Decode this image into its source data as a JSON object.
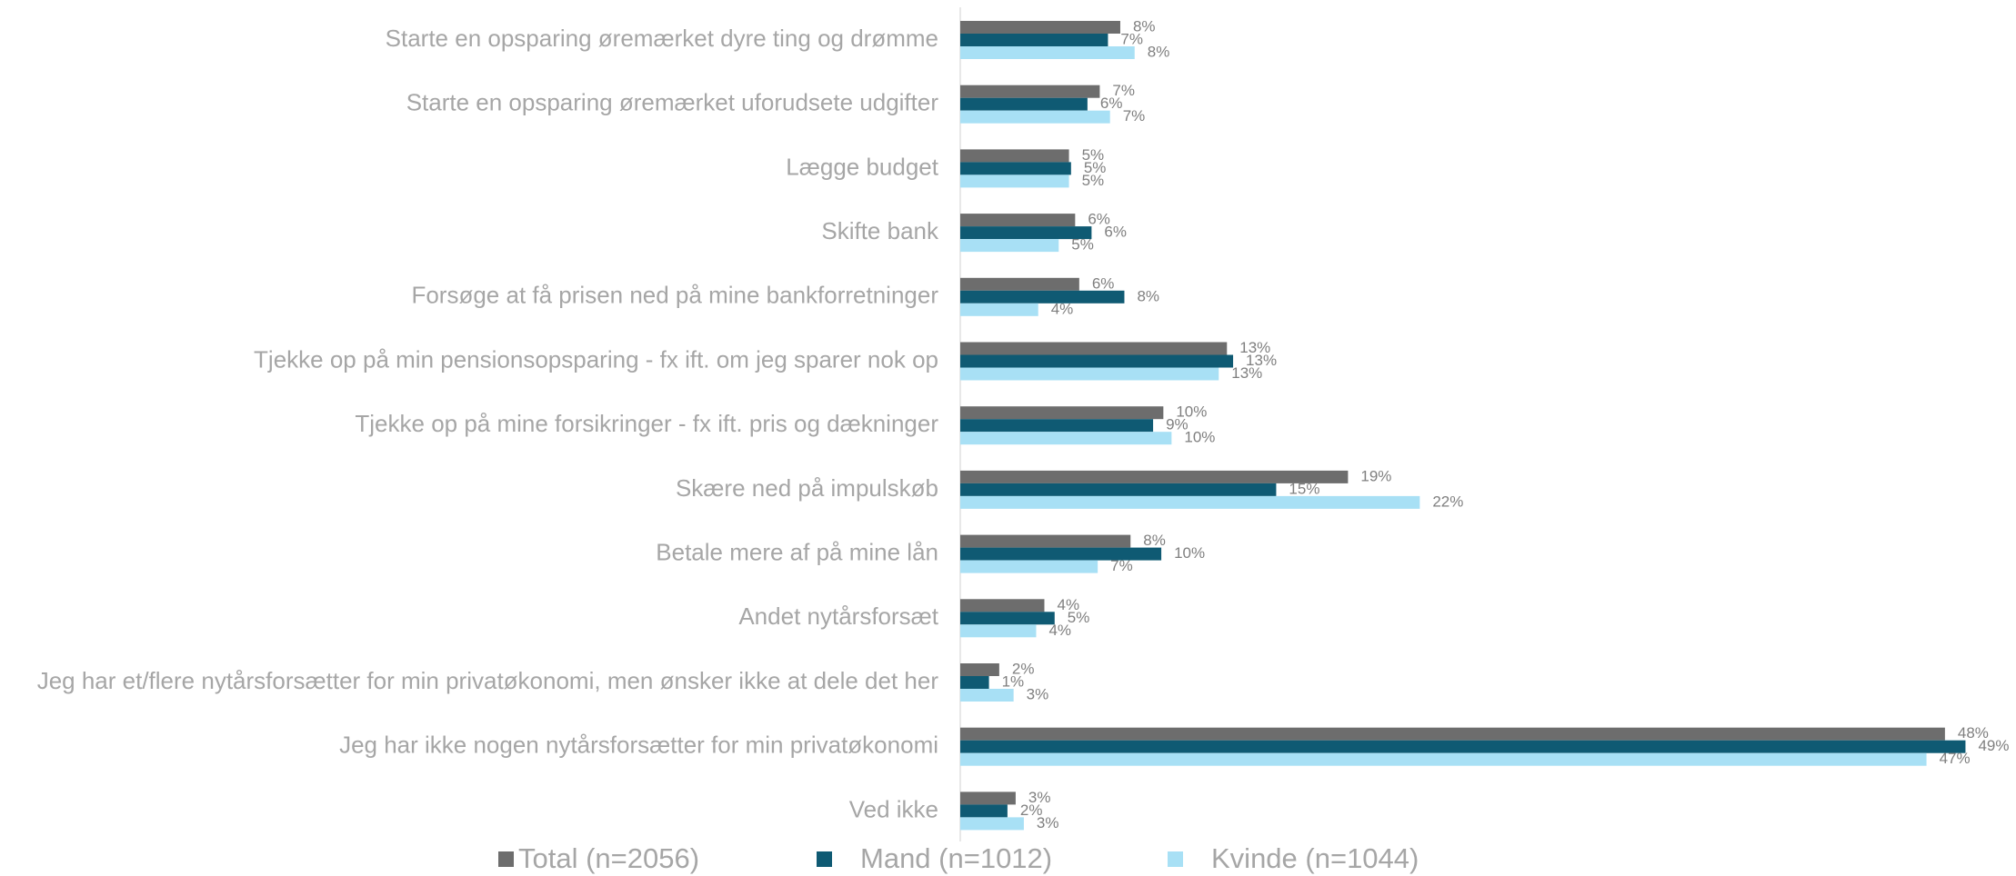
{
  "chart_data": {
    "type": "hbar",
    "categories": [
      "Starte en opsparing øremærket dyre ting og drømme",
      "Starte en opsparing øremærket uforudsete udgifter",
      "Lægge budget",
      "Skifte bank",
      "Forsøge at få prisen ned på mine bankforretninger",
      "Tjekke op på min pensionsopsparing - fx ift. om jeg sparer nok op",
      "Tjekke op på mine forsikringer - fx ift. pris og dækninger",
      "Skære ned på impulskøb",
      "Betale mere af på mine lån",
      "Andet nytårsforsæt",
      "Jeg har et/flere nytårsforsætter for min privatøkonomi, men ønsker ikke at dele det her",
      "Jeg har ikke nogen nytårsforsætter for min privatøkonomi",
      "Ved ikke"
    ],
    "series": [
      {
        "name": "Total (n=2056)",
        "color": "#6d6d6d",
        "values": [
          7.8,
          6.8,
          5.3,
          5.6,
          5.8,
          13.0,
          9.9,
          18.9,
          8.3,
          4.1,
          1.9,
          48.0,
          2.7
        ],
        "value_labels": [
          "8%",
          "7%",
          "5%",
          "6%",
          "6%",
          "13%",
          "10%",
          "19%",
          "8%",
          "4%",
          "2%",
          "48%",
          "3%"
        ]
      },
      {
        "name": "Mand (n=1012)",
        "color": "#0f5a73",
        "values": [
          7.2,
          6.2,
          5.4,
          6.4,
          8.0,
          13.3,
          9.4,
          15.4,
          9.8,
          4.6,
          1.4,
          49.0,
          2.3
        ],
        "value_labels": [
          "7%",
          "6%",
          "5%",
          "6%",
          "8%",
          "13%",
          "9%",
          "15%",
          "10%",
          "5%",
          "1%",
          "49%",
          "2%"
        ]
      },
      {
        "name": "Kvinde (n=1044)",
        "color": "#a8e0f5",
        "values": [
          8.5,
          7.3,
          5.3,
          4.8,
          3.8,
          12.6,
          10.3,
          22.4,
          6.7,
          3.7,
          2.6,
          47.1,
          3.1
        ],
        "value_labels": [
          "8%",
          "7%",
          "5%",
          "5%",
          "4%",
          "13%",
          "10%",
          "22%",
          "7%",
          "4%",
          "3%",
          "47%",
          "3%"
        ]
      }
    ],
    "xlim": [
      0,
      50
    ],
    "legend": "bottom"
  }
}
